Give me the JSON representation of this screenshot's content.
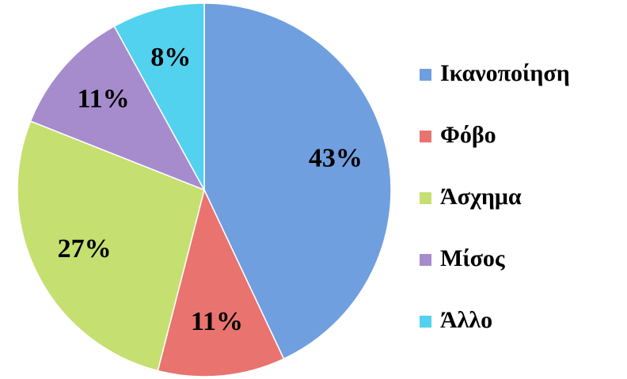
{
  "chart_data": {
    "type": "pie",
    "categories": [
      "Ικανοποίηση",
      "Φόβο",
      "Άσχημα",
      "Μίσος",
      "Άλλο"
    ],
    "values": [
      43,
      11,
      27,
      11,
      8
    ],
    "value_labels": [
      "43%",
      "11%",
      "27%",
      "11%",
      "8%"
    ],
    "colors": [
      "#709fe0",
      "#e9736f",
      "#c5df70",
      "#a68ccd",
      "#52d2ee"
    ],
    "legend": "right"
  }
}
